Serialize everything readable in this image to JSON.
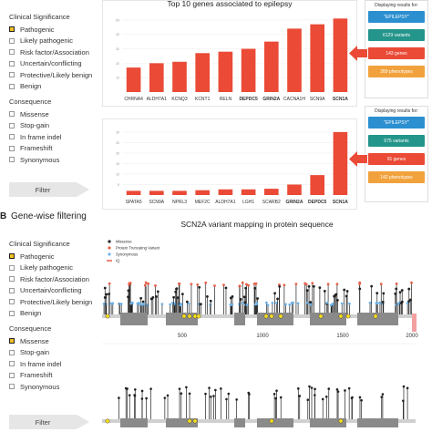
{
  "chart1": {
    "title": "Top 10 genes associated to epilepsy",
    "categories": [
      "CHRNA4",
      "ALDH7A1",
      "KCNQ3",
      "KCNT1",
      "RELN",
      "DEPDC5",
      "GRIN2A",
      "CACNA1H",
      "SCN9A",
      "SCN1A"
    ],
    "values": [
      17,
      20,
      21,
      27,
      28,
      30,
      35,
      44,
      47,
      51
    ],
    "yticks": [
      10,
      20,
      30,
      40,
      50
    ],
    "ymax": 55,
    "bold": [
      "DEPDC5",
      "GRIN2A",
      "SCN1A"
    ]
  },
  "chart2": {
    "categories": [
      "SPATA5",
      "SCN9A",
      "NPRL3",
      "MEF2C",
      "ALDH7A1",
      "LGH1",
      "SCARB2",
      "GRIN2A",
      "DEPDC5",
      "SCN1A"
    ],
    "values": [
      2,
      2,
      2,
      2.3,
      2.7,
      2.7,
      3,
      5,
      9.5,
      30
    ],
    "yticks": [
      5,
      10,
      15,
      20,
      25,
      30
    ],
    "ymax": 33,
    "bold": [
      "GRIN2A",
      "DEPDC5",
      "SCN1A"
    ]
  },
  "side1": {
    "label": "Displaying results for:",
    "query": "\"EPILEPSY\"",
    "variants": "6129 variants",
    "genes": "143 genes",
    "phenotypes": "289 phenotypes"
  },
  "side2": {
    "label": "Displaying results for:",
    "query": "\"EPILEPSY\"",
    "variants": "675 variants",
    "genes": "91 genes",
    "phenotypes": "142 phenotypes"
  },
  "filter_top": {
    "clin_header": "Clinical Significance",
    "clin_options": [
      {
        "label": "Pathogenic",
        "checked": true
      },
      {
        "label": "Likely pathogenic",
        "checked": false
      },
      {
        "label": "Risk factor/Association",
        "checked": false
      },
      {
        "label": "Uncertain/conflicting",
        "checked": false
      },
      {
        "label": "Protective/Likely benign",
        "checked": false
      },
      {
        "label": "Benign",
        "checked": false
      }
    ],
    "cons_header": "Consequence",
    "cons_options": [
      {
        "label": "Missense",
        "checked": false
      },
      {
        "label": "Stop-gain",
        "checked": false
      },
      {
        "label": "In frame indel",
        "checked": false
      },
      {
        "label": "Frameshift",
        "checked": false
      },
      {
        "label": "Synonymous",
        "checked": false
      }
    ],
    "filter_label": "Filter"
  },
  "filter_bottom": {
    "clin_header": "Clinical Significance",
    "clin_options": [
      {
        "label": "Pathogenic",
        "checked": true
      },
      {
        "label": "Likely pathogenic",
        "checked": false
      },
      {
        "label": "Risk factor/Association",
        "checked": false
      },
      {
        "label": "Uncertain/conflicting",
        "checked": false
      },
      {
        "label": "Protective/Likely benign",
        "checked": false
      },
      {
        "label": "Benign",
        "checked": false
      }
    ],
    "cons_header": "Consequence",
    "cons_options": [
      {
        "label": "Missense",
        "checked": true
      },
      {
        "label": "Stop-gain",
        "checked": false
      },
      {
        "label": "In frame indel",
        "checked": false
      },
      {
        "label": "Frameshift",
        "checked": false
      },
      {
        "label": "Synonymous",
        "checked": false
      }
    ],
    "filter_label": "Filter"
  },
  "section_b": {
    "letter": "B",
    "title": "Gene-wise filtering"
  },
  "protein_map": {
    "title": "SCN2A variant mapping in protein sequence",
    "legend": [
      "Missense",
      "Protein Truncating Variant",
      "Synonymous",
      "IQ"
    ],
    "axis_ticks": [
      "500",
      "1000",
      "1500",
      "2000"
    ]
  },
  "colors": {
    "bar": "#ea4a36",
    "missense": "#222222",
    "truncating": "#e8604a",
    "synonymous": "#6fb3e8",
    "iq": "#e8604a",
    "domain": "#8a8a8a",
    "motif": "#f5dc1e"
  }
}
